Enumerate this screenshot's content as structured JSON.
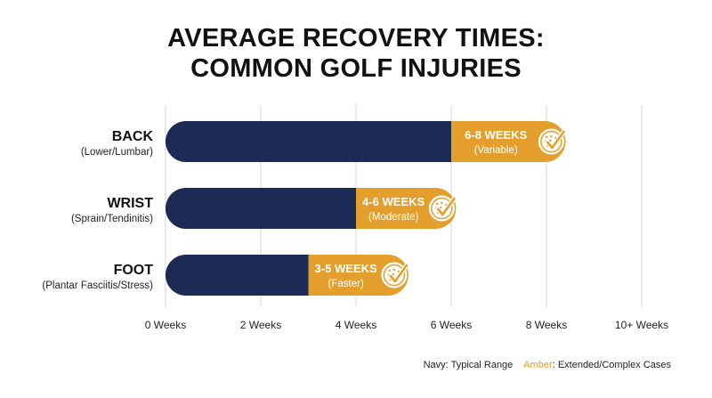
{
  "title_lines": [
    "AVERAGE RECOVERY TIMES:",
    "COMMON GOLF INJURIES"
  ],
  "legend": {
    "navy_label": "Navy: Typical Range",
    "amber_word": "Amber",
    "amber_rest": ": Extended/Complex Cases"
  },
  "colors": {
    "navy": "#1B2B55",
    "amber": "#E39E2B",
    "grid": "#D5D5D5",
    "text": "#111111"
  },
  "icon": "golf-ball-check-icon",
  "chart_data": {
    "type": "bar",
    "orientation": "horizontal",
    "stacked": true,
    "title": "AVERAGE RECOVERY TIMES: COMMON GOLF INJURIES",
    "x_ticks": [
      "0 Weeks",
      "2 Weeks",
      "4 Weeks",
      "6 Weeks",
      "8 Weeks",
      "10+ Weeks"
    ],
    "x_tick_values": [
      0,
      2,
      4,
      6,
      8,
      10
    ],
    "xlim": [
      0,
      10
    ],
    "grid": true,
    "legend_position": "bottom-right",
    "categories": [
      {
        "name": "BACK",
        "sub": "(Lower/Lumbar)",
        "typical": 6,
        "end": 8.4,
        "label": "6-8 WEEKS",
        "sublabel": "(Variable)"
      },
      {
        "name": "WRIST",
        "sub": "(Sprain/Tendinitis)",
        "typical": 4,
        "end": 6.1,
        "label": "4-6 WEEKS",
        "sublabel": "(Moderate)"
      },
      {
        "name": "FOOT",
        "sub": "(Plantar Fasciitis/Stress)",
        "typical": 3,
        "end": 5.1,
        "label": "3-5 WEEKS",
        "sublabel": "(Faster)"
      }
    ]
  }
}
